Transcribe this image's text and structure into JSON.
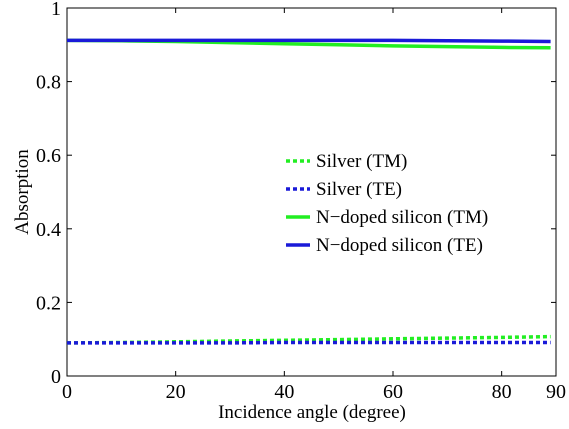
{
  "chart_data": {
    "type": "line",
    "title": "",
    "xlabel": "Incidence angle (degree)",
    "ylabel": "Absorption",
    "xlim": [
      0,
      90
    ],
    "ylim": [
      0,
      1
    ],
    "xticks": [
      "0",
      "20",
      "40",
      "60",
      "80",
      "90"
    ],
    "xtick_values": [
      0,
      20,
      40,
      60,
      80,
      90
    ],
    "yticks": [
      "0",
      "0.2",
      "0.4",
      "0.6",
      "0.8",
      "1"
    ],
    "ytick_values": [
      0,
      0.2,
      0.4,
      0.6,
      0.8,
      1
    ],
    "grid": false,
    "legend_position": "center-right",
    "x": [
      0,
      10,
      20,
      30,
      40,
      50,
      60,
      70,
      80,
      89
    ],
    "series": [
      {
        "name": "Silver (TM)",
        "color": "#22ee22",
        "style": "dotted",
        "values": [
          0.09,
          0.091,
          0.093,
          0.095,
          0.097,
          0.099,
          0.101,
          0.103,
          0.105,
          0.107
        ]
      },
      {
        "name": "Silver (TE)",
        "color": "#1a1ad8",
        "style": "dotted",
        "values": [
          0.09,
          0.09,
          0.09,
          0.09,
          0.091,
          0.091,
          0.091,
          0.091,
          0.091,
          0.091
        ]
      },
      {
        "name": "N−doped silicon (TM)",
        "color": "#22ee22",
        "style": "solid",
        "values": [
          0.912,
          0.911,
          0.909,
          0.906,
          0.903,
          0.9,
          0.897,
          0.895,
          0.893,
          0.892
        ]
      },
      {
        "name": "N−doped silicon (TE)",
        "color": "#1a1ad8",
        "style": "solid",
        "values": [
          0.912,
          0.912,
          0.912,
          0.912,
          0.912,
          0.912,
          0.912,
          0.911,
          0.91,
          0.909
        ]
      }
    ]
  }
}
